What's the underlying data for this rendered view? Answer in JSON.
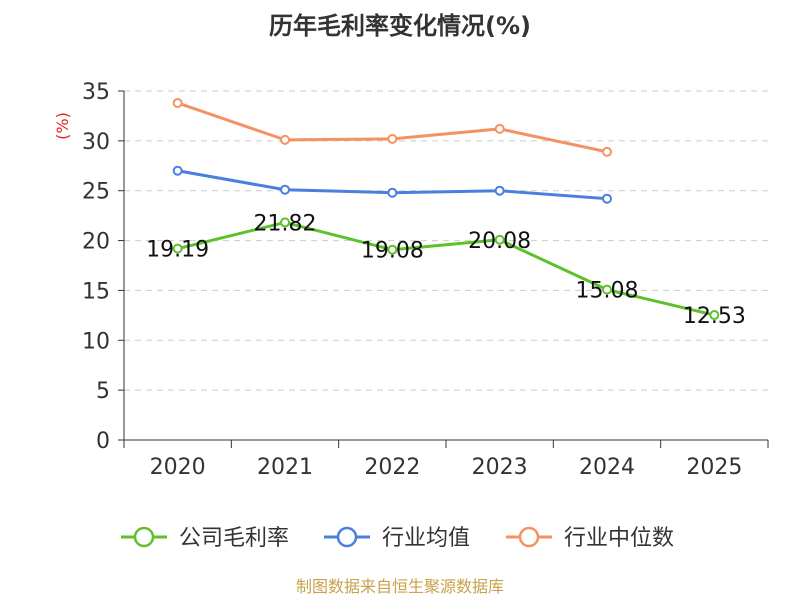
{
  "chart_data": {
    "type": "line",
    "title": "历年毛利率变化情况(%)",
    "xlabel": "",
    "ylabel": "(%)",
    "categories": [
      "2020",
      "2021",
      "2022",
      "2023",
      "2024",
      "2025"
    ],
    "ylim": [
      0,
      35
    ],
    "yticks": [
      0,
      5,
      10,
      15,
      20,
      25,
      30,
      35
    ],
    "grid": true,
    "legend_position": "bottom",
    "series": [
      {
        "name": "公司毛利率",
        "color": "#5cc12a",
        "values": [
          19.19,
          21.82,
          19.08,
          20.08,
          15.08,
          12.53
        ],
        "labels": [
          "19.19",
          "21.82",
          "19.08",
          "20.08",
          "15.08",
          "12.53"
        ]
      },
      {
        "name": "行业均值",
        "color": "#4a7fe0",
        "values": [
          27.0,
          25.1,
          24.8,
          25.0,
          24.2,
          null
        ]
      },
      {
        "name": "行业中位数",
        "color": "#f59261",
        "values": [
          33.8,
          30.1,
          30.2,
          31.2,
          28.9,
          null
        ]
      }
    ],
    "source": "制图数据来自恒生聚源数据库"
  }
}
